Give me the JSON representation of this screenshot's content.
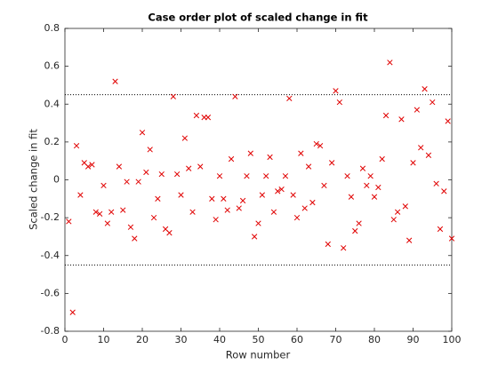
{
  "chart_data": {
    "type": "scatter",
    "title": "Case order plot of scaled change in fit",
    "x_label": "Row number",
    "y_label": "Scaled change in fit",
    "xlim": [
      0,
      100
    ],
    "ylim": [
      -0.8,
      0.8
    ],
    "xticks": [
      0,
      10,
      20,
      30,
      40,
      50,
      60,
      70,
      80,
      90,
      100
    ],
    "yticks": [
      -0.8,
      -0.6,
      -0.4,
      -0.2,
      0,
      0.2,
      0.4,
      0.6,
      0.8
    ],
    "reference_lines": [
      0.45,
      -0.45
    ],
    "marker": "x",
    "color": "#e00000",
    "x": [
      1,
      2,
      3,
      4,
      5,
      6,
      7,
      8,
      9,
      10,
      11,
      12,
      13,
      14,
      15,
      16,
      17,
      18,
      19,
      20,
      21,
      22,
      23,
      24,
      25,
      26,
      27,
      28,
      29,
      30,
      31,
      32,
      33,
      34,
      35,
      36,
      37,
      38,
      39,
      40,
      41,
      42,
      43,
      44,
      45,
      46,
      47,
      48,
      49,
      50,
      51,
      52,
      53,
      54,
      55,
      56,
      57,
      58,
      59,
      60,
      61,
      62,
      63,
      64,
      65,
      66,
      67,
      68,
      69,
      70,
      71,
      72,
      73,
      74,
      75,
      76,
      77,
      78,
      79,
      80,
      81,
      82,
      83,
      84,
      85,
      86,
      87,
      88,
      89,
      90,
      91,
      92,
      93,
      94,
      95,
      96,
      97,
      98,
      99,
      100
    ],
    "values": [
      -0.22,
      -0.7,
      0.18,
      -0.08,
      0.09,
      0.07,
      0.08,
      -0.17,
      -0.18,
      -0.03,
      -0.23,
      -0.17,
      0.52,
      0.07,
      -0.16,
      -0.01,
      -0.25,
      -0.31,
      -0.01,
      0.25,
      0.04,
      0.16,
      -0.2,
      -0.1,
      0.03,
      -0.26,
      -0.28,
      0.44,
      0.03,
      -0.08,
      0.22,
      0.06,
      -0.17,
      0.34,
      0.07,
      0.33,
      0.33,
      -0.1,
      -0.21,
      0.02,
      -0.1,
      -0.16,
      0.11,
      0.44,
      -0.15,
      -0.11,
      0.02,
      0.14,
      -0.3,
      -0.23,
      -0.08,
      0.02,
      0.12,
      -0.17,
      -0.06,
      -0.05,
      0.02,
      0.43,
      -0.08,
      -0.2,
      0.14,
      -0.15,
      0.07,
      -0.12,
      0.19,
      0.18,
      -0.03,
      -0.34,
      0.09,
      0.47,
      0.41,
      -0.36,
      0.02,
      -0.09,
      -0.27,
      -0.23,
      0.06,
      -0.03,
      0.02,
      -0.09,
      -0.04,
      0.11,
      0.34,
      0.62,
      -0.21,
      -0.17,
      0.32,
      -0.14,
      -0.32,
      0.09,
      0.37,
      0.17,
      0.48,
      0.13,
      0.41,
      -0.02,
      -0.26,
      -0.06,
      0.31,
      -0.31
    ]
  }
}
